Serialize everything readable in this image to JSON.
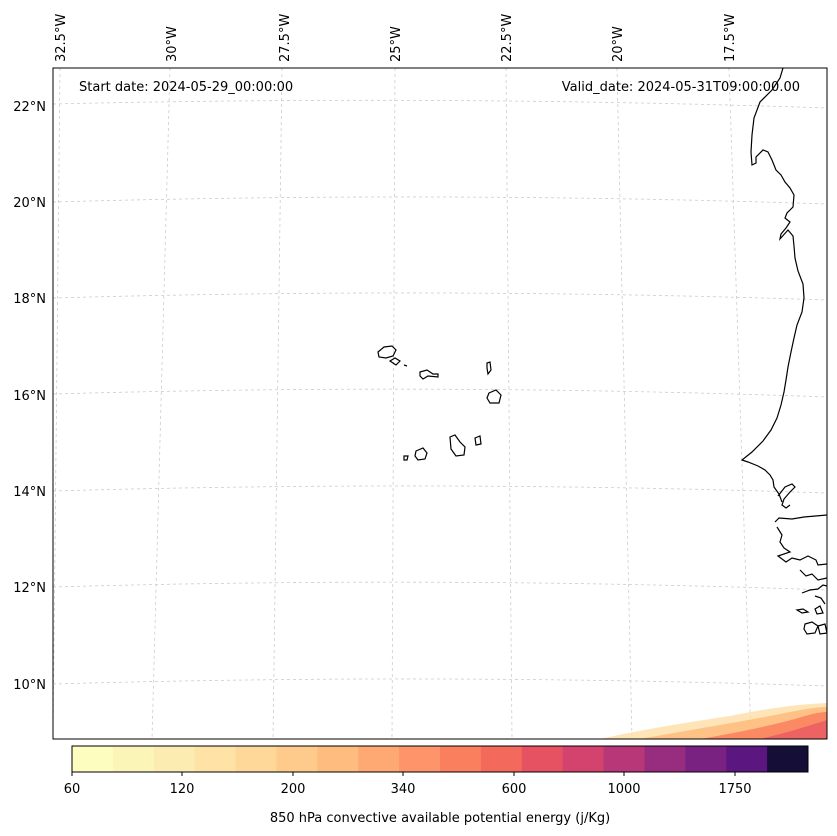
{
  "map": {
    "start_date": "Start date: 2024-05-29_00:00:00",
    "valid_date": "Valid_date: 2024-05-31T09:00:00.00",
    "lon_labels": [
      "32.5°W",
      "30°W",
      "27.5°W",
      "25°W",
      "22.5°W",
      "20°W",
      "17.5°W"
    ],
    "lat_labels": [
      "22°N",
      "20°N",
      "18°N",
      "16°N",
      "14°N",
      "12°N",
      "10°N"
    ],
    "region": "Cape Verde islands and West African coast"
  },
  "colorbar": {
    "label": "850 hPa convective available potential energy (j/Kg)",
    "tick_labels": [
      "60",
      "120",
      "200",
      "340",
      "600",
      "1000",
      "1750"
    ],
    "colors": [
      "#fcfdbf",
      "#fcf5b8",
      "#fdecb1",
      "#fee2a6",
      "#fed899",
      "#fecb8c",
      "#febc7e",
      "#fea973",
      "#fd946a",
      "#fa7f5e",
      "#f3695c",
      "#e75263",
      "#d3436e",
      "#b73779",
      "#982d80",
      "#7a2282",
      "#5c167f",
      "#150e37"
    ]
  },
  "colors": {
    "coastline": "#000000",
    "gridline": "#cccccc"
  }
}
